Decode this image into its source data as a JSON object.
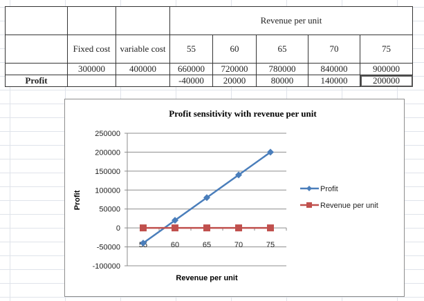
{
  "table": {
    "header_span": "Revenue per unit",
    "col_headers": [
      "Fixed cost",
      "variable cost",
      "55",
      "60",
      "65",
      "70",
      "75"
    ],
    "row_costs": [
      "300000",
      "400000",
      "660000",
      "720000",
      "780000",
      "840000",
      "900000"
    ],
    "profit_label": "Profit",
    "profit_values": [
      "-40000",
      "20000",
      "80000",
      "140000",
      "200000"
    ]
  },
  "chart_data": {
    "type": "line",
    "title": "Profit sensitivity with revenue per unit",
    "xlabel": "Revenue per unit",
    "ylabel": "Profit",
    "categories": [
      "55",
      "60",
      "65",
      "70",
      "75"
    ],
    "ylim": [
      -100000,
      250000
    ],
    "yticks": [
      250000,
      200000,
      150000,
      100000,
      50000,
      0,
      -50000,
      -100000
    ],
    "grid": true,
    "legend_position": "right",
    "series": [
      {
        "name": "Profit",
        "values": [
          -40000,
          20000,
          80000,
          140000,
          200000
        ],
        "color": "#4a7ebb",
        "marker": "diamond"
      },
      {
        "name": "Revenue per unit",
        "values": [
          55,
          60,
          65,
          70,
          75
        ],
        "color": "#c0504d",
        "marker": "square"
      }
    ]
  }
}
